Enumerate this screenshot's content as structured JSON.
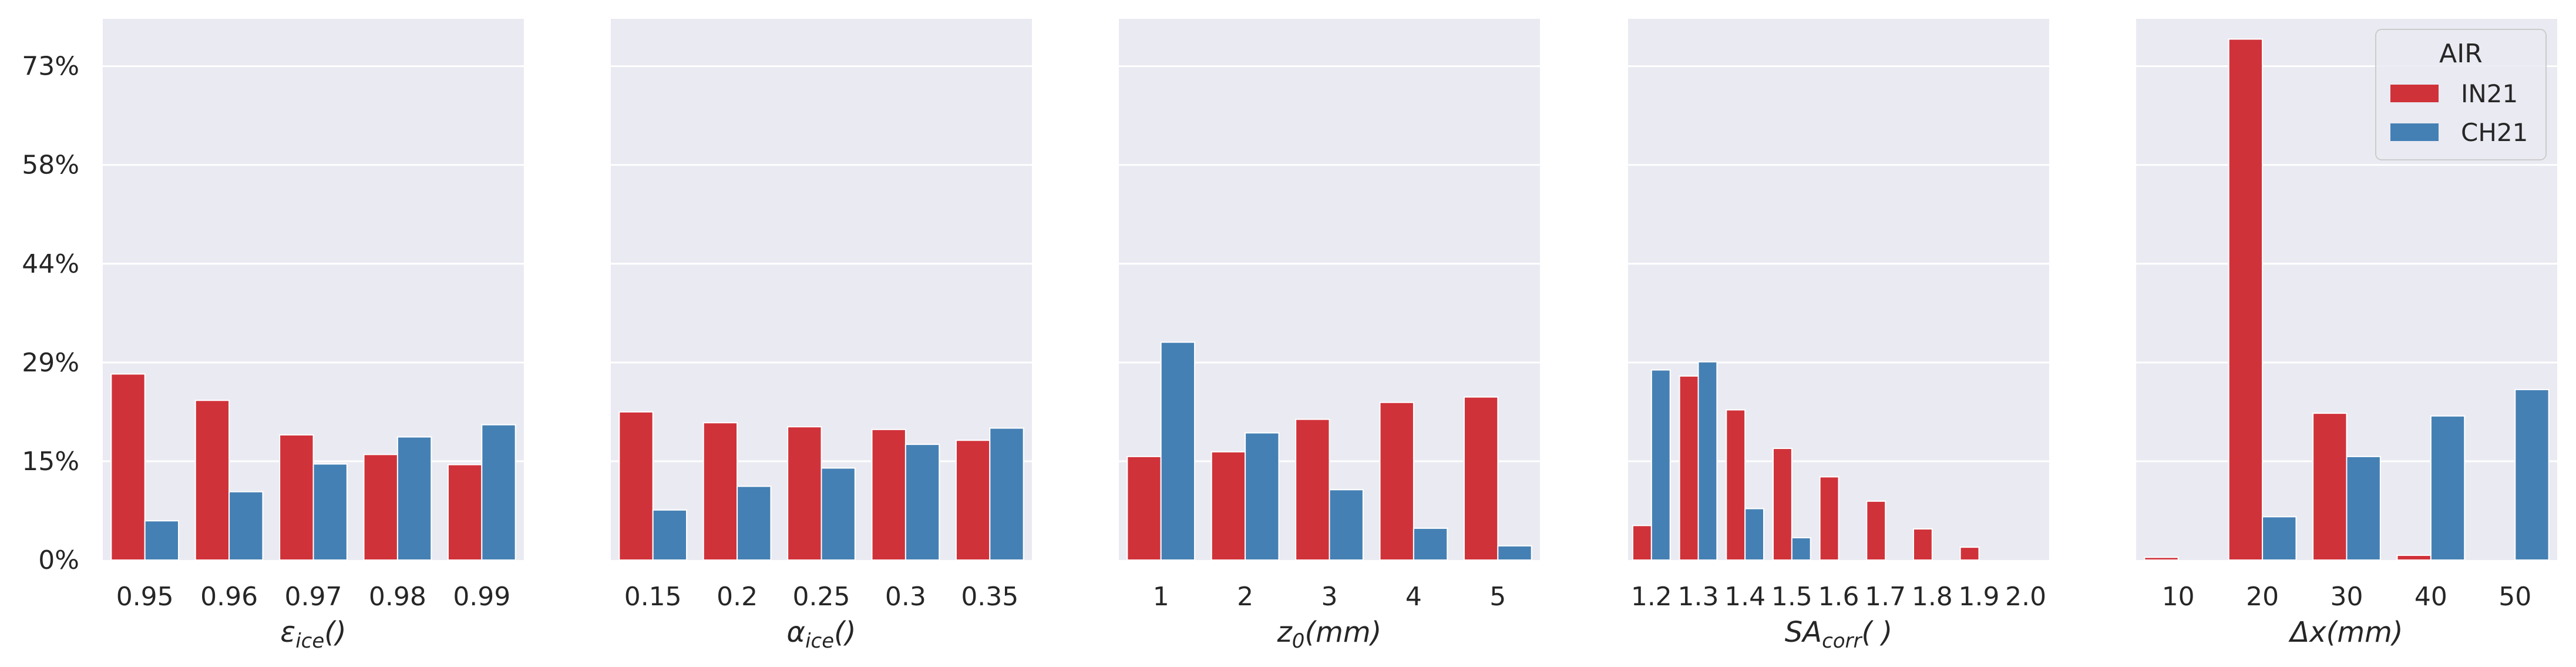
{
  "colors": {
    "background": "#EAEAF2",
    "grid": "#FFFFFF",
    "text": "#262626"
  },
  "chart_data": {
    "type": "bar",
    "shared_y": true,
    "ylim": [
      0,
      0.8
    ],
    "yticks": [
      0,
      0.146,
      0.292,
      0.438,
      0.584,
      0.73
    ],
    "ytick_labels": [
      "0%",
      "15%",
      "29%",
      "44%",
      "58%",
      "73%"
    ],
    "grid": true,
    "legend": {
      "title": "AIR",
      "placement": "top-right",
      "entries": [
        "IN21",
        "CH21"
      ]
    },
    "series_styles": [
      {
        "name": "IN21",
        "color": "#D0323A"
      },
      {
        "name": "CH21",
        "color": "#4580B4"
      }
    ],
    "panels": [
      {
        "xlabel_main": "ε",
        "xlabel_sub": "ice",
        "xlabel_tail": "()",
        "categories": [
          "0.95",
          "0.96",
          "0.97",
          "0.98",
          "0.99"
        ],
        "series": [
          {
            "name": "IN21",
            "values": [
              0.275,
              0.236,
              0.185,
              0.156,
              0.141
            ]
          },
          {
            "name": "CH21",
            "values": [
              0.058,
              0.101,
              0.142,
              0.182,
              0.2
            ]
          }
        ]
      },
      {
        "xlabel_main": "α",
        "xlabel_sub": "ice",
        "xlabel_tail": "()",
        "categories": [
          "0.15",
          "0.2",
          "0.25",
          "0.3",
          "0.35"
        ],
        "series": [
          {
            "name": "IN21",
            "values": [
              0.219,
              0.203,
              0.197,
              0.193,
              0.177
            ]
          },
          {
            "name": "CH21",
            "values": [
              0.074,
              0.109,
              0.136,
              0.171,
              0.195
            ]
          }
        ]
      },
      {
        "xlabel_main": "z",
        "xlabel_sub": "0",
        "xlabel_tail": "(mm)",
        "categories": [
          "1",
          "2",
          "3",
          "4",
          "5"
        ],
        "series": [
          {
            "name": "IN21",
            "values": [
              0.153,
              0.16,
              0.208,
              0.233,
              0.241
            ]
          },
          {
            "name": "CH21",
            "values": [
              0.322,
              0.188,
              0.104,
              0.047,
              0.021
            ]
          }
        ]
      },
      {
        "xlabel_main": "SA",
        "xlabel_sub": "corr",
        "xlabel_tail": "( )",
        "categories": [
          "1.2",
          "1.3",
          "1.4",
          "1.5",
          "1.6",
          "1.7",
          "1.8",
          "1.9",
          "2.0"
        ],
        "series": [
          {
            "name": "IN21",
            "values": [
              0.051,
              0.272,
              0.222,
              0.165,
              0.123,
              0.087,
              0.046,
              0.019,
              0.0
            ]
          },
          {
            "name": "CH21",
            "values": [
              0.281,
              0.293,
              0.076,
              0.033,
              0.0,
              0.0,
              0.0,
              0.0,
              0.0
            ]
          }
        ]
      },
      {
        "xlabel_main": "Δx",
        "xlabel_sub": "",
        "xlabel_tail": "(mm)",
        "categories": [
          "10",
          "20",
          "30",
          "40",
          "50"
        ],
        "series": [
          {
            "name": "IN21",
            "values": [
              0.004,
              0.77,
              0.217,
              0.007,
              0.0
            ]
          },
          {
            "name": "CH21",
            "values": [
              0.0,
              0.064,
              0.153,
              0.213,
              0.252
            ]
          }
        ]
      }
    ]
  }
}
